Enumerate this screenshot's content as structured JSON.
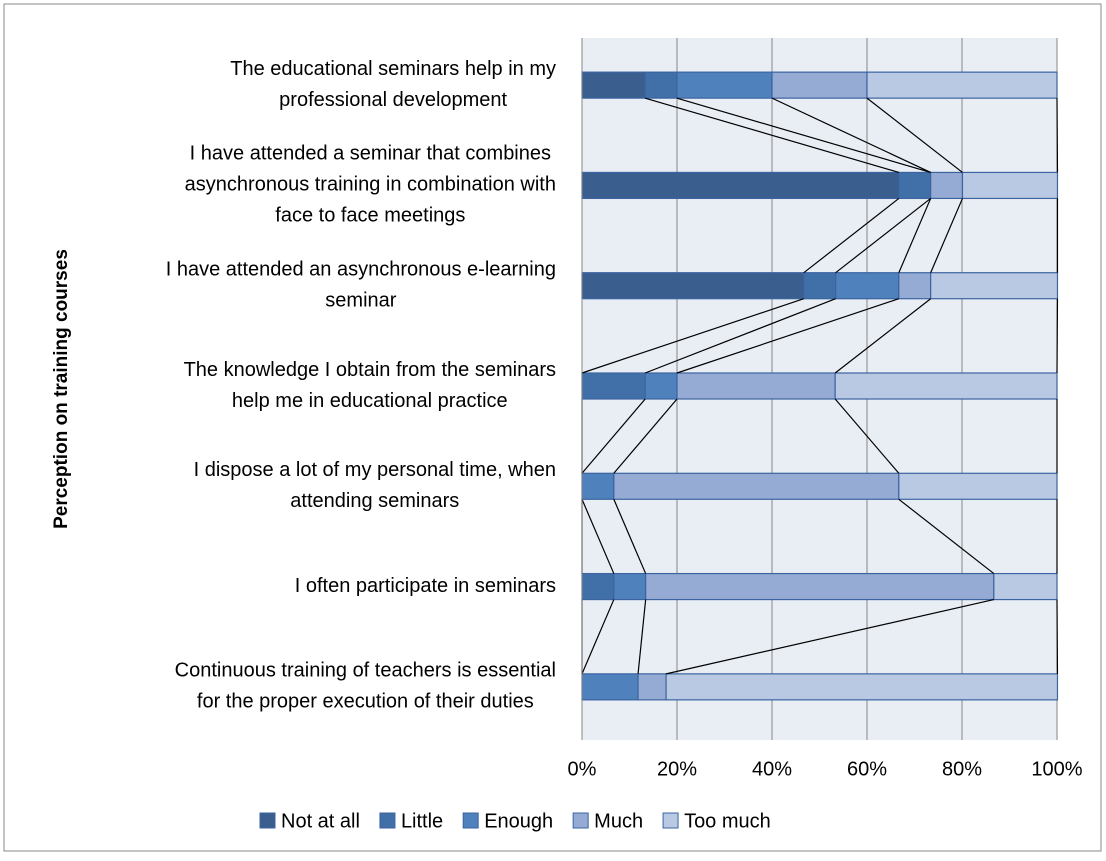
{
  "chart_data": {
    "type": "stacked-barh",
    "y_axis_label": "Perception on training courses",
    "categories": [
      [
        "The educational seminars help in my",
        "professional development"
      ],
      [
        "I have attended a seminar that combines",
        "asynchronous training in combination with",
        "face to face meetings"
      ],
      [
        "I have attended an asynchronous e-learning",
        "seminar"
      ],
      [
        "The knowledge I obtain from the seminars",
        "help me in educational practice"
      ],
      [
        "I dispose a lot of my personal time, when",
        "attending seminars"
      ],
      [
        "I often participate in seminars"
      ],
      [
        "Continuous training of teachers is essential",
        "for the proper execution of their duties"
      ]
    ],
    "series": [
      {
        "name": "Not at all",
        "color": "#3a5f8f",
        "values": [
          13.3,
          66.7,
          46.7,
          0,
          0,
          0,
          0
        ]
      },
      {
        "name": "Little",
        "color": "#4170a8",
        "values": [
          6.7,
          6.7,
          6.7,
          13.3,
          0,
          6.7,
          0
        ]
      },
      {
        "name": "Enough",
        "color": "#4f81bd",
        "values": [
          20,
          0,
          13.3,
          6.7,
          6.7,
          6.7,
          11.8
        ]
      },
      {
        "name": "Much",
        "color": "#95abd3",
        "values": [
          20,
          6.7,
          6.7,
          33.3,
          60,
          73.3,
          5.9
        ]
      },
      {
        "name": "Too much",
        "color": "#b9c9e4",
        "values": [
          40,
          20,
          26.7,
          46.7,
          33.3,
          13.3,
          82.4
        ]
      }
    ],
    "xlim": [
      0,
      100
    ],
    "xticks": [
      {
        "value": 0,
        "label": "0%"
      },
      {
        "value": 20,
        "label": "20%"
      },
      {
        "value": 40,
        "label": "40%"
      },
      {
        "value": 60,
        "label": "60%"
      },
      {
        "value": 80,
        "label": "80%"
      },
      {
        "value": 100,
        "label": "100%"
      }
    ],
    "grid": true,
    "series_lines": true,
    "legend": "bottom"
  }
}
